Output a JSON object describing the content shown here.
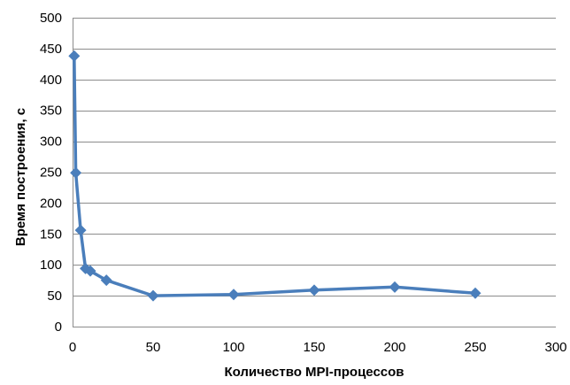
{
  "chart_data": {
    "type": "line",
    "title": "",
    "xlabel": "Количество MPI-процессов",
    "ylabel": "Время построения, с",
    "xlim": [
      0,
      300
    ],
    "ylim": [
      0,
      500
    ],
    "xticks": [
      0,
      50,
      100,
      150,
      200,
      250,
      300
    ],
    "yticks": [
      0,
      50,
      100,
      150,
      200,
      250,
      300,
      350,
      400,
      450,
      500
    ],
    "grid": "horizontal",
    "legend": "none",
    "series": [
      {
        "color": "#4a7ebb",
        "marker": "diamond",
        "points": [
          {
            "x": 1,
            "y": 438
          },
          {
            "x": 2,
            "y": 249
          },
          {
            "x": 5,
            "y": 156
          },
          {
            "x": 8,
            "y": 94
          },
          {
            "x": 11,
            "y": 90
          },
          {
            "x": 21,
            "y": 75
          },
          {
            "x": 50,
            "y": 50
          },
          {
            "x": 100,
            "y": 52
          },
          {
            "x": 150,
            "y": 59
          },
          {
            "x": 200,
            "y": 64
          },
          {
            "x": 250,
            "y": 54
          }
        ]
      }
    ]
  }
}
